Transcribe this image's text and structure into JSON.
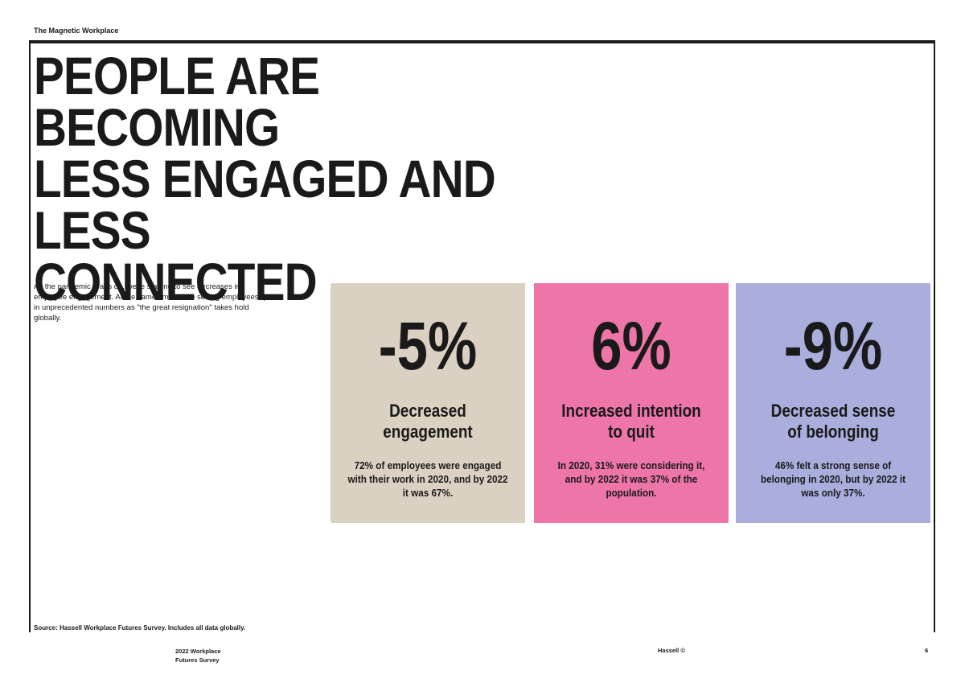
{
  "header": {
    "running_title": "The Magnetic Workplace"
  },
  "title_lines": [
    "PEOPLE ARE BECOMING",
    "LESS ENGAGED AND LESS",
    "CONNECTED"
  ],
  "intro": "As the pandemic drags on, we're starting to see decreases in employee engagement. At the same time, we're seeing employees quit in unprecedented numbers as \"the great resignation\" takes hold globally.",
  "stats": [
    {
      "value": "-5%",
      "label": "Decreased engagement",
      "description": "72% of employees were engaged with their work in 2020, and by 2022 it was 67%.",
      "color": "#dbd1c2"
    },
    {
      "value": "6%",
      "label": "Increased intention to quit",
      "description": "In 2020, 31% were considering it, and by 2022 it was 37% of the population.",
      "color": "#ed75a8"
    },
    {
      "value": "-9%",
      "label": "Decreased sense of belonging",
      "description": "46% felt a strong sense of belonging in 2020, but by 2022 it was only 37%.",
      "color": "#a9aedd"
    }
  ],
  "source": "Source: Hassell Workplace Futures Survey. Includes all data globally.",
  "footer": {
    "publication_line1": "2022 Workplace",
    "publication_line2": "Futures Survey",
    "publisher": "Hassell ©",
    "page_number": "6"
  }
}
